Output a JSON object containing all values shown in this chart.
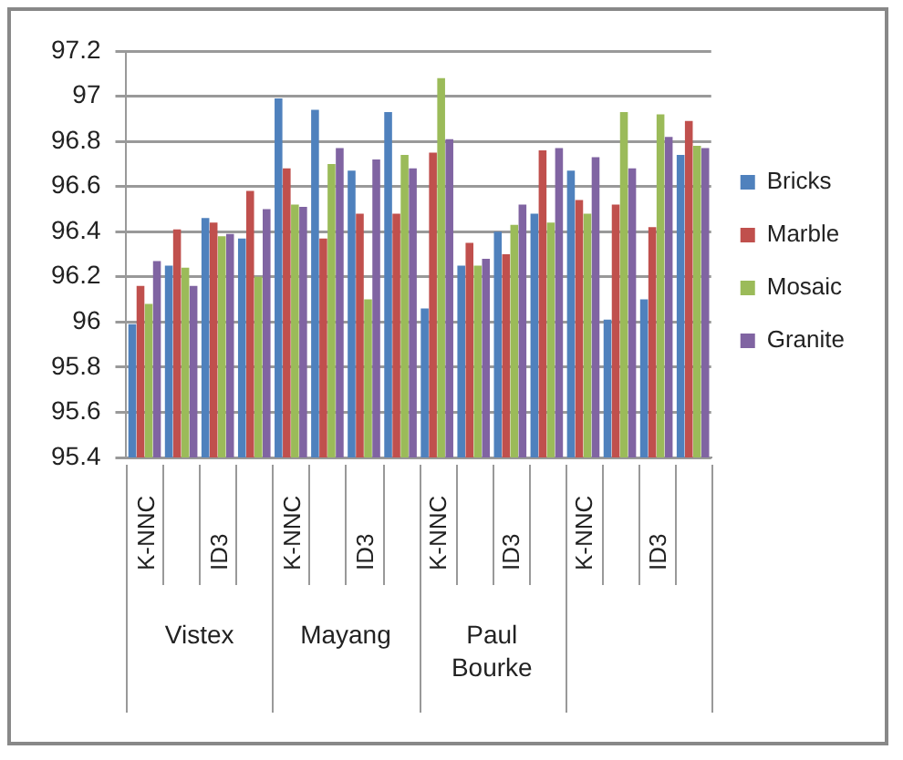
{
  "chart_data": {
    "type": "bar",
    "categories": [
      "K-NNC",
      null,
      "ID3",
      null,
      "K-NNC",
      null,
      "ID3",
      null,
      "K-NNC",
      null,
      "ID3",
      null,
      "K-NNC",
      null,
      "ID3",
      null
    ],
    "series": [
      {
        "name": "Bricks",
        "color": "#4f81bd",
        "values": [
          95.99,
          96.25,
          96.46,
          96.37,
          96.99,
          96.94,
          96.67,
          96.93,
          96.06,
          96.25,
          96.4,
          96.48,
          96.67,
          96.01,
          96.1,
          96.74
        ]
      },
      {
        "name": "Marble",
        "color": "#c0504d",
        "values": [
          96.16,
          96.41,
          96.44,
          96.58,
          96.68,
          96.37,
          96.48,
          96.48,
          96.75,
          96.35,
          96.3,
          96.76,
          96.54,
          96.52,
          96.42,
          96.89
        ]
      },
      {
        "name": "Mosaic",
        "color": "#9bbb59",
        "values": [
          96.08,
          96.24,
          96.38,
          96.2,
          96.52,
          96.7,
          96.1,
          96.74,
          97.08,
          96.25,
          96.43,
          96.44,
          96.48,
          96.93,
          96.92,
          96.78
        ]
      },
      {
        "name": "Granite",
        "color": "#8064a2",
        "values": [
          96.27,
          96.16,
          96.39,
          96.5,
          96.51,
          96.77,
          96.72,
          96.68,
          96.81,
          96.28,
          96.52,
          96.77,
          96.73,
          96.68,
          96.82,
          96.77
        ]
      }
    ],
    "annotations": [
      "Vistex",
      "Mayang",
      "Paul Bourke"
    ],
    "ylim": [
      95.4,
      97.2
    ],
    "yticks": [
      95.4,
      95.6,
      95.8,
      96,
      96.2,
      96.4,
      96.6,
      96.8,
      97,
      97.2
    ],
    "grid": "y",
    "legend": "right"
  }
}
